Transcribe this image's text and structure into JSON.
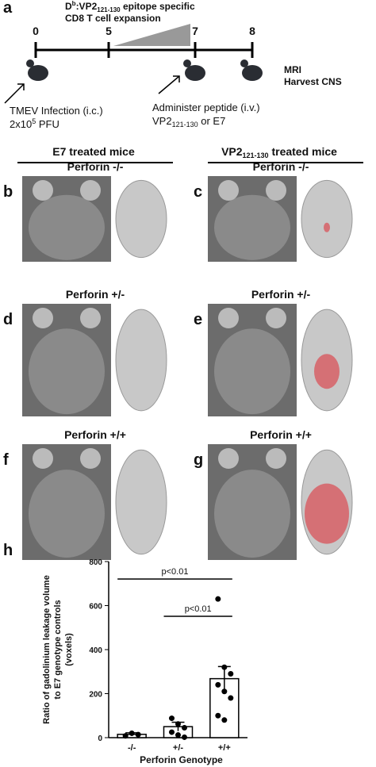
{
  "timeline": {
    "letter": "a",
    "ticks": [
      "0",
      "5",
      "7",
      "8"
    ],
    "expansion_line1": [
      "D",
      "b",
      ":VP2",
      "121-130",
      " epitope specific"
    ],
    "expansion_line2": "CD8 T cell expansion",
    "mri": "MRI",
    "harvest": "Harvest CNS",
    "infection_line1": "TMEV Infection (i.c.)",
    "infection_line2": [
      "2x10",
      "5",
      " PFU"
    ],
    "peptide_line1": "Administer peptide (i.v.)",
    "peptide_line2": [
      "VP2",
      "121-130",
      "  or E7"
    ]
  },
  "headers": {
    "left": "E7 treated mice",
    "right": [
      "VP2",
      "121-130",
      " treated mice"
    ]
  },
  "panels": [
    {
      "letter": "b",
      "label": "Perforin -/-"
    },
    {
      "letter": "c",
      "label": "Perforin -/-"
    },
    {
      "letter": "d",
      "label": "Perforin +/-"
    },
    {
      "letter": "e",
      "label": "Perforin +/-"
    },
    {
      "letter": "f",
      "label": "Perforin +/+"
    },
    {
      "letter": "g",
      "label": "Perforin +/+"
    }
  ],
  "chart_data": {
    "type": "bar",
    "letter": "h",
    "y_label": [
      "Ratio of gadolinium leakage volume",
      "to E7 genotype controls",
      "(voxels)"
    ],
    "x_label": "Perforin Genotype",
    "categories": [
      "-/-",
      "+/-",
      "+/+"
    ],
    "values": [
      15,
      50,
      268
    ],
    "errors": [
      7,
      20,
      55
    ],
    "points": [
      [
        8,
        20,
        14
      ],
      [
        88,
        62,
        45,
        25,
        12,
        2
      ],
      [
        630,
        320,
        290,
        240,
        210,
        180,
        100,
        80
      ]
    ],
    "color": "#ffffff",
    "ylim": [
      0,
      800
    ],
    "yticks": [
      0,
      200,
      400,
      600,
      800
    ],
    "annotations": [
      "p<0.01",
      "p<0.01"
    ]
  }
}
